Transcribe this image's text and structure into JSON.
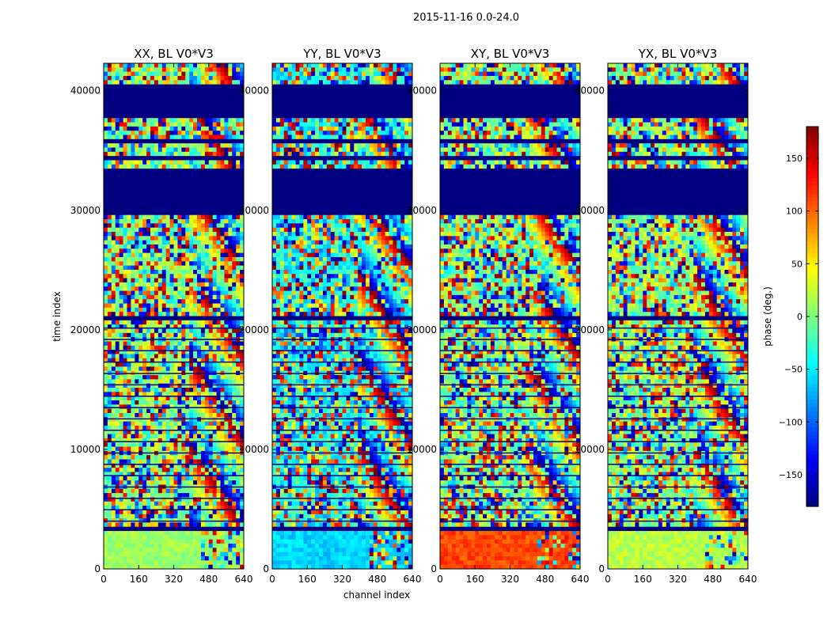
{
  "chart_data": {
    "type": "heatmap",
    "title": "2015-11-16 0.0-24.0",
    "xlabel": "channel index",
    "ylabel": "time index",
    "xlim": [
      0,
      640
    ],
    "ylim": [
      0,
      42300
    ],
    "x_ticks": [
      "0",
      "160",
      "320",
      "480",
      "640"
    ],
    "y_ticks": [
      "0",
      "10000",
      "20000",
      "30000",
      "40000"
    ],
    "x_tick_values": [
      0,
      160,
      320,
      480,
      640
    ],
    "y_tick_values": [
      0,
      10000,
      20000,
      30000,
      40000
    ],
    "panels": [
      {
        "title": "XX, BL V0*V3",
        "base_phase": 5,
        "low_band_phase": 10
      },
      {
        "title": "YY, BL V0*V3",
        "base_phase": -40,
        "low_band_phase": -60
      },
      {
        "title": "XY, BL V0*V3",
        "base_phase": 0,
        "low_band_phase": 110
      },
      {
        "title": "YX, BL V0*V3",
        "base_phase": 5,
        "low_band_phase": 20
      }
    ],
    "flagged_time_ranges": [
      [
        37800,
        40600
      ],
      [
        29700,
        33500
      ],
      [
        34100,
        34400
      ],
      [
        35600,
        35900
      ],
      [
        20900,
        21100
      ],
      [
        13700,
        13900
      ],
      [
        3300,
        3500
      ]
    ],
    "colorbar": {
      "label": "phase (deg.)",
      "range": [
        -180,
        180
      ],
      "ticks": [
        "150",
        "100",
        "50",
        "0",
        "−50",
        "−100",
        "−150"
      ],
      "tick_values": [
        150,
        100,
        50,
        0,
        -50,
        -100,
        -150
      ],
      "colormap": "jet"
    }
  }
}
